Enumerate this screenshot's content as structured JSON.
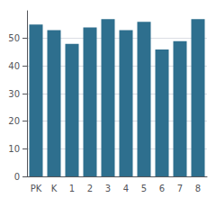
{
  "chart_data": {
    "type": "bar",
    "categories": [
      "PK",
      "K",
      "1",
      "2",
      "3",
      "4",
      "5",
      "6",
      "7",
      "8"
    ],
    "values": [
      55,
      53,
      48,
      54,
      57,
      53,
      56,
      46,
      49,
      57
    ],
    "color": "#2e6f8e",
    "ylim": [
      0,
      60
    ],
    "yticks": [
      0,
      10,
      20,
      30,
      40,
      50
    ],
    "grid": true
  }
}
